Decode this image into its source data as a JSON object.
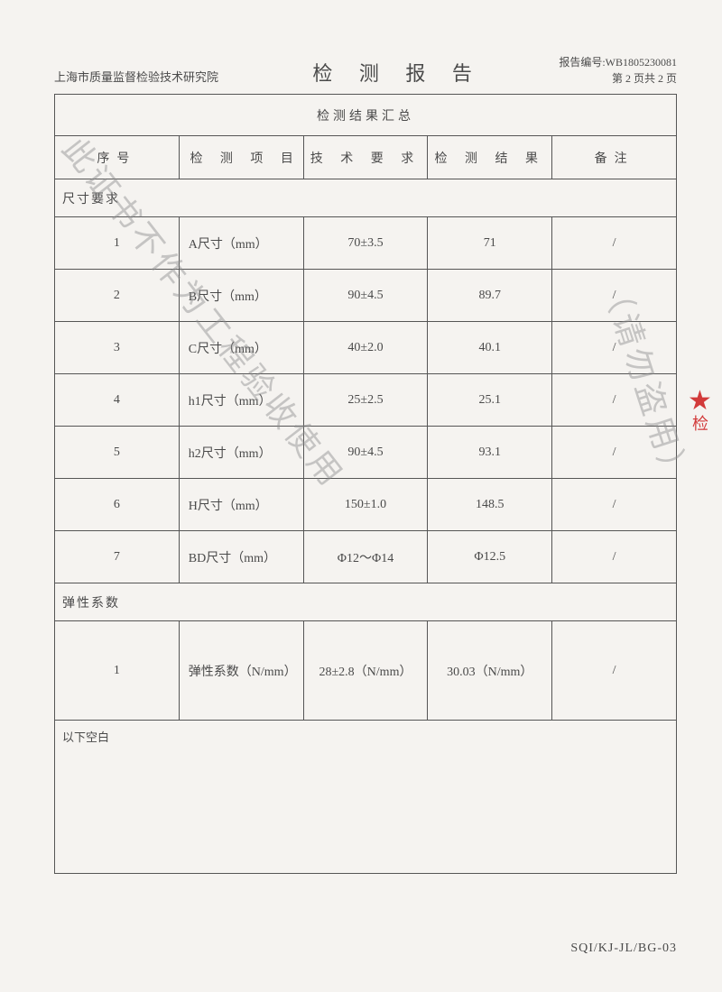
{
  "header": {
    "organization": "上海市质量监督检验技术研究院",
    "title": "检 测 报 告",
    "report_no_label": "报告编号:",
    "report_no": "WB1805230081",
    "page_info": "第 2 页共 2 页"
  },
  "table": {
    "summary_title": "检测结果汇总",
    "columns": {
      "no": "序号",
      "item": "检 测 项 目",
      "requirement": "技 术 要 求",
      "result": "检 测 结 果",
      "note": "备注"
    },
    "section1": "尺寸要求",
    "rows1": [
      {
        "no": "1",
        "item": "A尺寸（mm）",
        "req": "70±3.5",
        "res": "71",
        "note": "/"
      },
      {
        "no": "2",
        "item": "B尺寸（mm）",
        "req": "90±4.5",
        "res": "89.7",
        "note": "/"
      },
      {
        "no": "3",
        "item": "C尺寸（mm）",
        "req": "40±2.0",
        "res": "40.1",
        "note": "/"
      },
      {
        "no": "4",
        "item": "h1尺寸（mm）",
        "req": "25±2.5",
        "res": "25.1",
        "note": "/"
      },
      {
        "no": "5",
        "item": "h2尺寸（mm）",
        "req": "90±4.5",
        "res": "93.1",
        "note": "/"
      },
      {
        "no": "6",
        "item": "H尺寸（mm）",
        "req": "150±1.0",
        "res": "148.5",
        "note": "/"
      },
      {
        "no": "7",
        "item": "BD尺寸（mm）",
        "req": "Φ12～Φ14",
        "res": "Φ12.5",
        "note": "/"
      }
    ],
    "section2": "弹性系数",
    "rows2": [
      {
        "no": "1",
        "item": "弹性系数（N/mm）",
        "req": "28±2.8（N/mm）",
        "res": "30.03（N/mm）",
        "note": "/"
      }
    ],
    "blank_label": "以下空白"
  },
  "footer_code": "SQI/KJ-JL/BG-03",
  "watermark": {
    "line1": "此证书不作为工程验收使用",
    "line2": "（请勿盗用）"
  },
  "colors": {
    "text": "#4a4a4a",
    "border": "#555555",
    "background": "#f5f3f0",
    "watermark": "rgba(140,140,140,0.45)",
    "stamp": "#d23a3a"
  }
}
